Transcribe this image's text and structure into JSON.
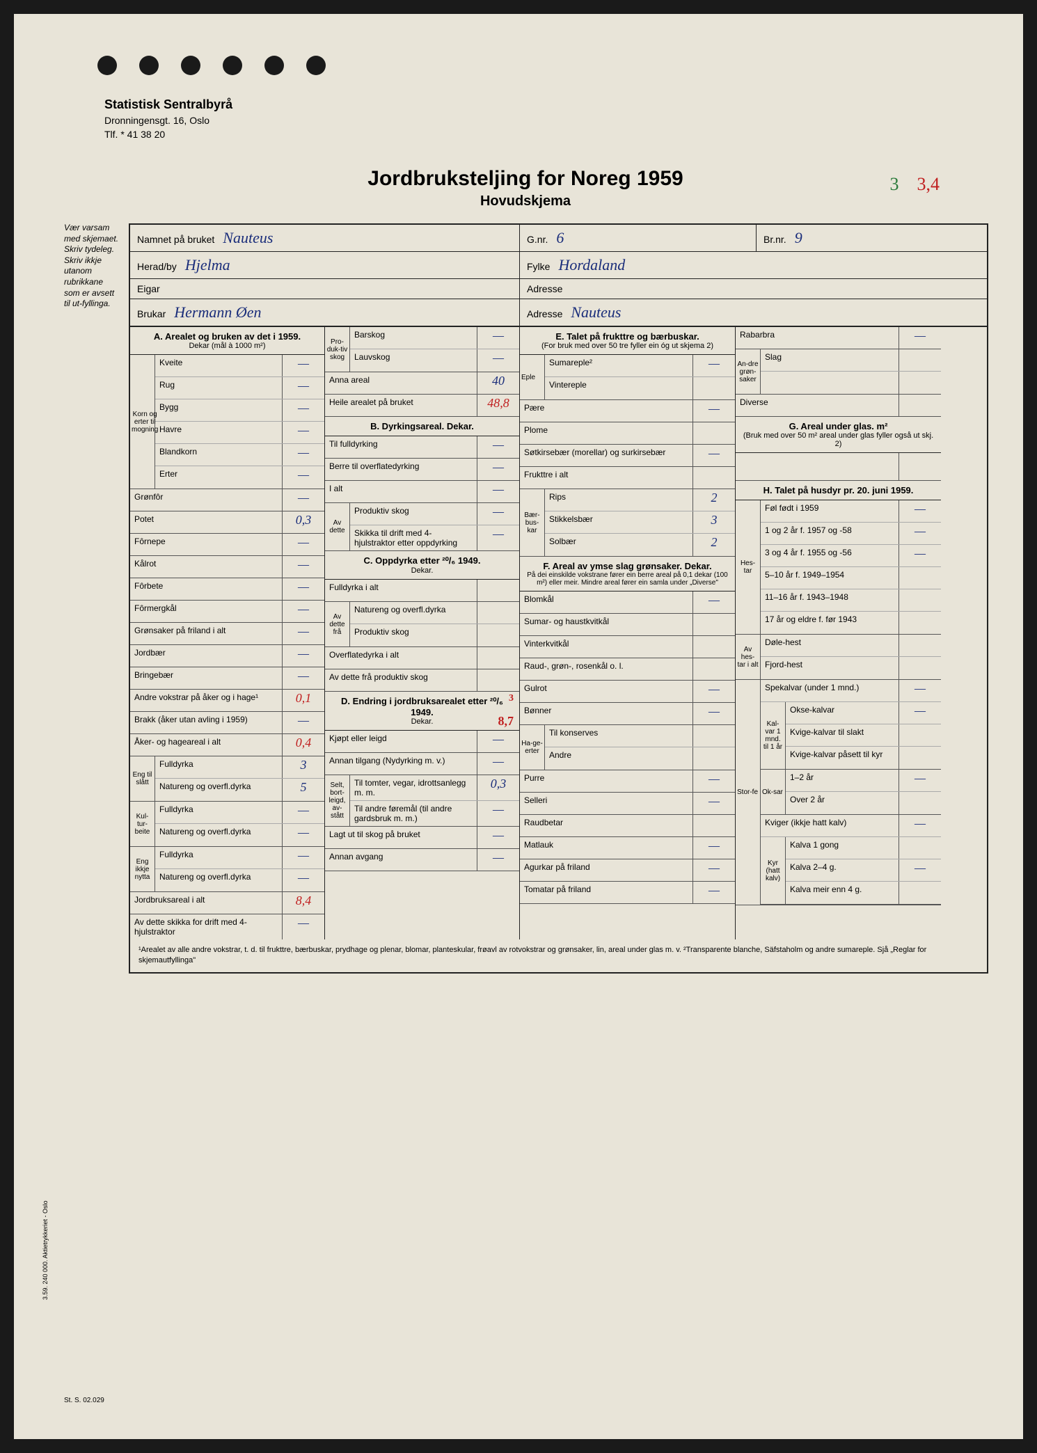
{
  "header": {
    "org": "Statistisk Sentralbyrå",
    "address": "Dronningensgt. 16, Oslo",
    "phone": "Tlf. * 41 38 20"
  },
  "title": {
    "main": "Jordbruksteljing for Noreg 1959",
    "sub": "Hovudskjema"
  },
  "corner_marks": {
    "green": "3",
    "red": "3,4"
  },
  "side_note": "Vær varsam med skjemaet.\nSkriv tydeleg.\nSkriv ikkje utanom rubrikkane som er avsett til ut-fyllinga.",
  "top": {
    "namnet_label": "Namnet på bruket",
    "namnet": "Nauteus",
    "gnr_label": "G.nr.",
    "gnr": "6",
    "brnr_label": "Br.nr.",
    "brnr": "9",
    "herad_label": "Herad/by",
    "herad": "Hjelma",
    "fylke_label": "Fylke",
    "fylke": "Hordaland",
    "eigar_label": "Eigar",
    "eigar": "",
    "adresse1_label": "Adresse",
    "adresse1": "",
    "brukar_label": "Brukar",
    "brukar": "Hermann Øen",
    "adresse2_label": "Adresse",
    "adresse2": "Nauteus"
  },
  "section_a": {
    "title": "A. Arealet og bruken av det i 1959.",
    "subtitle": "Dekar (mål à 1000 m²)",
    "korn_label": "Korn og erter til mogning",
    "rows": [
      {
        "label": "Kveite",
        "val": "—"
      },
      {
        "label": "Rug",
        "val": "—"
      },
      {
        "label": "Bygg",
        "val": "—"
      },
      {
        "label": "Havre",
        "val": "—"
      },
      {
        "label": "Blandkorn",
        "val": "—"
      },
      {
        "label": "Erter",
        "val": "—"
      }
    ],
    "rows2": [
      {
        "label": "Grønfôr",
        "val": "—"
      },
      {
        "label": "Potet",
        "val": "0,3"
      },
      {
        "label": "Fôrnepe",
        "val": "—"
      },
      {
        "label": "Kålrot",
        "val": "—"
      },
      {
        "label": "Fôrbete",
        "val": "—"
      },
      {
        "label": "Fôrmergkål",
        "val": "—"
      },
      {
        "label": "Grønsaker på friland i alt",
        "val": "—"
      },
      {
        "label": "Jordbær",
        "val": "—"
      },
      {
        "label": "Bringebær",
        "val": "—"
      },
      {
        "label": "Andre vokstrar på åker og i hage¹",
        "val": "0,1",
        "red": true
      },
      {
        "label": "Brakk (åker utan avling i 1959)",
        "val": "—"
      },
      {
        "label": "Åker- og hageareal i alt",
        "val": "0,4",
        "red": true
      }
    ],
    "eng_slott_label": "Eng til slått",
    "eng_slott": [
      {
        "label": "Fulldyrka",
        "val": "3"
      },
      {
        "label": "Natureng og overfl.dyrka",
        "val": "5"
      }
    ],
    "kulturbeite_label": "Kul-tur-beite",
    "kulturbeite": [
      {
        "label": "Fulldyrka",
        "val": "—"
      },
      {
        "label": "Natureng og overfl.dyrka",
        "val": "—"
      }
    ],
    "eng_ikkje_label": "Eng ikkje nytta",
    "eng_ikkje": [
      {
        "label": "Fulldyrka",
        "val": "—"
      },
      {
        "label": "Natureng og overfl.dyrka",
        "val": "—"
      }
    ],
    "jordbruk_alt": {
      "label": "Jordbruksareal i alt",
      "val": "8,4",
      "red": true
    },
    "traktor": {
      "label": "Av dette skikka for drift med 4-hjulstraktor",
      "val": "—"
    }
  },
  "section_b": {
    "skog_label": "Pro-duk-tiv skog",
    "skog": [
      {
        "label": "Barskog",
        "val": "—"
      },
      {
        "label": "Lauvskog",
        "val": "—"
      }
    ],
    "anna": {
      "label": "Anna areal",
      "val": "40"
    },
    "heile": {
      "label": "Heile arealet på bruket",
      "val": "48,8",
      "red": true
    },
    "title": "B. Dyrkingsareal. Dekar.",
    "rows": [
      {
        "label": "Til fulldyrking",
        "val": "—"
      },
      {
        "label": "Berre til overflatedyrking",
        "val": "—"
      },
      {
        "label": "I alt",
        "val": "—"
      }
    ],
    "avdette_label": "Av dette",
    "avdette": [
      {
        "label": "Produktiv skog",
        "val": "—"
      },
      {
        "label": "Skikka til drift med 4-hjulstraktor etter oppdyrking",
        "val": "—"
      }
    ],
    "c_title": "C. Oppdyrka etter ²⁰/₆ 1949.",
    "c_sub": "Dekar.",
    "c_rows": [
      {
        "label": "Fulldyrka i alt",
        "val": ""
      }
    ],
    "c_avdette_label": "Av dette frå",
    "c_avdette": [
      {
        "label": "Natureng og overfl.dyrka",
        "val": ""
      },
      {
        "label": "Produktiv skog",
        "val": ""
      }
    ],
    "c_rows2": [
      {
        "label": "Overflatedyrka i alt",
        "val": ""
      },
      {
        "label": "Av dette frå produktiv skog",
        "val": ""
      }
    ],
    "d_title": "D. Endring i jordbruksarealet etter ²⁰/₆ 1949.",
    "d_sub": "Dekar.",
    "d_corner": "3",
    "d_val": "8,7",
    "d_rows": [
      {
        "label": "Kjøpt eller leigd",
        "val": "—"
      },
      {
        "label": "Annan tilgang (Nydyrking m. v.)",
        "val": "—"
      }
    ],
    "d_selt_label": "Selt, bort-leigd, av-stått",
    "d_selt": [
      {
        "label": "Til tomter, vegar, idrottsanlegg m. m.",
        "val": "0,3"
      },
      {
        "label": "Til andre føremål (til andre gardsbruk m. m.)",
        "val": "—"
      }
    ],
    "d_rows2": [
      {
        "label": "Lagt ut til skog på bruket",
        "val": "—"
      },
      {
        "label": "Annan avgang",
        "val": "—"
      }
    ]
  },
  "section_e": {
    "title": "E. Talet på frukttre og bærbuskar.",
    "subtitle": "(For bruk med over 50 tre fyller ein óg ut skjema 2)",
    "eple_label": "Eple",
    "eple": [
      {
        "label": "Sumareple²",
        "val": "—"
      },
      {
        "label": "Vintereple",
        "val": ""
      }
    ],
    "rows": [
      {
        "label": "Pære",
        "val": "—"
      },
      {
        "label": "Plome",
        "val": ""
      },
      {
        "label": "Søtkirsebær (morellar) og surkirsebær",
        "val": "—"
      },
      {
        "label": "Frukttre i alt",
        "val": ""
      }
    ],
    "baer_label": "Bær-bus-kar",
    "baer": [
      {
        "label": "Rips",
        "val": "2"
      },
      {
        "label": "Stikkelsbær",
        "val": "3"
      },
      {
        "label": "Solbær",
        "val": "2"
      }
    ],
    "f_title": "F. Areal av ymse slag grønsaker. Dekar.",
    "f_subtitle": "På dei einskilde vokstrane fører ein berre areal på 0,1 dekar (100 m²) eller meir. Mindre areal fører ein samla under „Diverse\"",
    "f_rows": [
      {
        "label": "Blomkål",
        "val": "—"
      },
      {
        "label": "Sumar- og haustkvitkål",
        "val": ""
      },
      {
        "label": "Vinterkvitkål",
        "val": ""
      },
      {
        "label": "Raud-, grøn-, rosenkål o. l.",
        "val": ""
      },
      {
        "label": "Gulrot",
        "val": "—"
      },
      {
        "label": "Bønner",
        "val": "—"
      }
    ],
    "hage_label": "Ha-ge-erter",
    "hage": [
      {
        "label": "Til konserves",
        "val": ""
      },
      {
        "label": "Andre",
        "val": ""
      }
    ],
    "f_rows2": [
      {
        "label": "Purre",
        "val": "—"
      },
      {
        "label": "Selleri",
        "val": "—"
      },
      {
        "label": "Raudbetar",
        "val": ""
      },
      {
        "label": "Matlauk",
        "val": "—"
      },
      {
        "label": "Agurkar på friland",
        "val": "—"
      },
      {
        "label": "Tomatar på friland",
        "val": "—"
      }
    ]
  },
  "section_g": {
    "rabarbra": {
      "label": "Rabarbra",
      "val": "—"
    },
    "andre_label": "An-dre grøn-saker",
    "andre": [
      {
        "label": "Slag",
        "val": ""
      },
      {
        "label": "",
        "val": ""
      }
    ],
    "diverse": {
      "label": "Diverse",
      "val": ""
    },
    "g_title": "G. Areal under glas. m²",
    "g_subtitle": "(Bruk med over 50 m² areal under glas fyller også ut skj. 2)",
    "h_title": "H. Talet på husdyr pr. 20. juni 1959.",
    "hestar_label": "Hes-tar",
    "hestar": [
      {
        "label": "Føl født i 1959",
        "val": "—"
      },
      {
        "label": "1 og 2 år f. 1957 og -58",
        "val": "—"
      },
      {
        "label": "3 og 4 år f. 1955 og -56",
        "val": "—"
      },
      {
        "label": "5–10 år f. 1949–1954",
        "val": ""
      },
      {
        "label": "11–16 år f. 1943–1948",
        "val": ""
      },
      {
        "label": "17 år og eldre f. før 1943",
        "val": ""
      }
    ],
    "avhestar_label": "Av hes-tar i alt",
    "avhestar": [
      {
        "label": "Døle-hest",
        "val": ""
      },
      {
        "label": "Fjord-hest",
        "val": ""
      }
    ],
    "storfe_label": "Stor-fe",
    "spekalvar": {
      "label": "Spekalvar (under 1 mnd.)",
      "val": "—"
    },
    "kalvar_label": "Kal-var 1 mnd. til 1 år",
    "kalvar": [
      {
        "label": "Okse-kalvar",
        "val": "—"
      },
      {
        "label": "Kvige-kalvar til slakt",
        "val": ""
      },
      {
        "label": "Kvige-kalvar påsett til kyr",
        "val": ""
      }
    ],
    "oksar_label": "Ok-sar",
    "oksar": [
      {
        "label": "1–2 år",
        "val": "—"
      },
      {
        "label": "Over 2 år",
        "val": ""
      }
    ],
    "kviger": {
      "label": "Kviger (ikkje hatt kalv)",
      "val": "—"
    },
    "kyr_label": "Kyr (hatt kalv)",
    "kyr": [
      {
        "label": "Kalva 1 gong",
        "val": ""
      },
      {
        "label": "Kalva 2–4 g.",
        "val": "—"
      },
      {
        "label": "Kalva meir enn 4 g.",
        "val": ""
      }
    ]
  },
  "footnote": "¹Arealet av alle andre vokstrar, t. d. til frukttre, bærbuskar, prydhage og plenar, blomar, planteskular, frøavl av rotvokstrar og grønsaker, lin, areal under glas m. v.   ²Transparente blanche, Säfstaholm og andre sumareple. Sjå „Reglar for skjemautfyllinga\"",
  "bottom_code": "St. S. 02.029",
  "side_print": "3.59. 240 000. Aktietrykkeriet - Oslo"
}
